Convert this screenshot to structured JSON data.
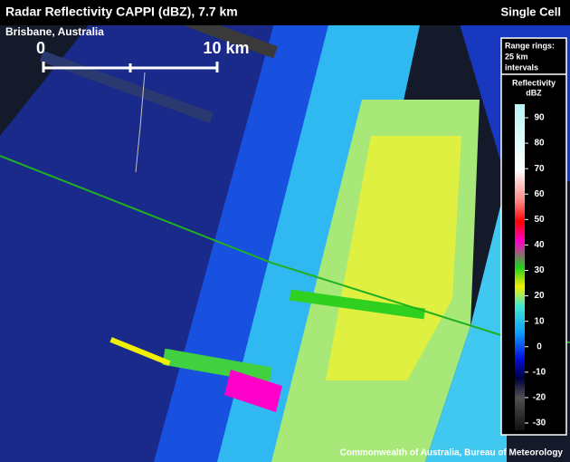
{
  "header": {
    "title": "Radar Reflectivity CAPPI (dBZ), 7.7 km",
    "mode": "Single Cell",
    "location": "Brisbane, Australia"
  },
  "scale_bar": {
    "start": "0",
    "end": "10 km"
  },
  "legend": {
    "rings_line1": "Range rings:",
    "rings_line2": "25 km",
    "rings_line3": "intervals",
    "title": "Reflectivity",
    "unit": "dBZ",
    "ticks": [
      90,
      80,
      70,
      60,
      50,
      40,
      30,
      20,
      10,
      0,
      -10,
      -20,
      -30
    ]
  },
  "footer": "Commonwealth of Australia, Bureau of Meteorology"
}
